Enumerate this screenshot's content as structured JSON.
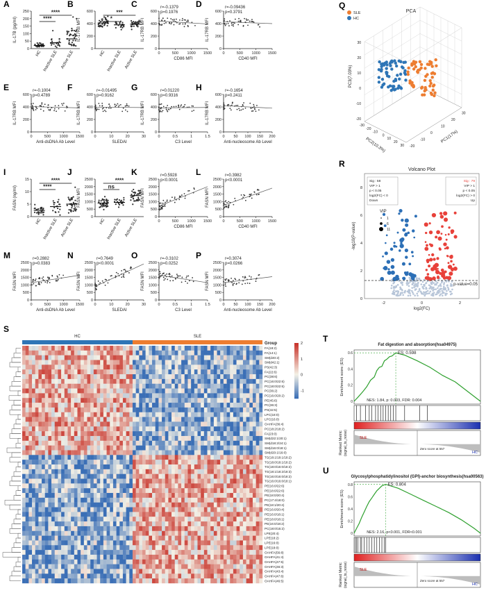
{
  "colors": {
    "sle": "#ED7D31",
    "hc": "#2E75B6",
    "up": "#E8413A",
    "down": "#2C6FB6",
    "ns": "#B7C5D8",
    "es_line": "#2EA02E",
    "heat_low": "#3B6FB6",
    "heat_mid": "#F4F1E6",
    "heat_high": "#C8342B",
    "point": "#333333"
  },
  "chart_data": [
    {
      "id": "A",
      "type": "scatter",
      "ylabel": "IL-17B (pg/ml)",
      "categories": [
        "HC",
        "Inactive SLE",
        "Active SLE"
      ],
      "ylim": [
        0,
        250
      ],
      "yticks": [
        0,
        50,
        100,
        150,
        200,
        250
      ],
      "medians": [
        20,
        40,
        65
      ],
      "spread": [
        [
          5,
          40
        ],
        [
          5,
          120
        ],
        [
          10,
          230
        ]
      ],
      "n": [
        34,
        20,
        40
      ],
      "significance": [
        {
          "pair": [
            0,
            1
          ],
          "label": "****"
        },
        {
          "pair": [
            0,
            2
          ],
          "label": "****"
        }
      ]
    },
    {
      "id": "B",
      "type": "scatter",
      "ylabel": "IL-17RB MFI",
      "categories": [
        "HC",
        "Inactive SLE",
        "Active SLE"
      ],
      "ylim": [
        0,
        600
      ],
      "yticks": [
        0,
        200,
        400,
        600
      ],
      "medians": [
        410,
        380,
        390
      ],
      "spread": [
        [
          330,
          560
        ],
        [
          300,
          470
        ],
        [
          300,
          460
        ]
      ],
      "n": [
        40,
        22,
        36
      ],
      "significance": [
        {
          "pair": [
            0,
            1
          ],
          "label": "*"
        },
        {
          "pair": [
            0,
            2
          ],
          "label": "***"
        }
      ]
    },
    {
      "id": "C",
      "type": "scatter",
      "xlabel": "CD86 MFI",
      "ylabel": "IL-17RB MFI",
      "stat": [
        "r=-0.1379",
        "p=0.1976"
      ],
      "xlim": [
        0,
        1500
      ],
      "ylim": [
        0,
        600
      ],
      "xticks": [
        0,
        500,
        1000,
        1500
      ],
      "yticks": [
        0,
        200,
        400,
        600
      ],
      "trend": [
        [
          0,
          440
        ],
        [
          1500,
          395
        ]
      ]
    },
    {
      "id": "D",
      "type": "scatter",
      "xlabel": "CD40 MFI",
      "ylabel": "IL-17RB MFI",
      "stat": [
        "r=-0.09436",
        "p=0.3791"
      ],
      "xlim": [
        0,
        1500
      ],
      "ylim": [
        0,
        600
      ],
      "xticks": [
        0,
        500,
        1000,
        1500
      ],
      "yticks": [
        0,
        200,
        400,
        600
      ],
      "trend": [
        [
          0,
          430
        ],
        [
          1500,
          400
        ]
      ]
    },
    {
      "id": "E",
      "type": "scatter",
      "xlabel": "Anti-dsDNA Ab Level",
      "ylabel": "IL-17RB MFI",
      "stat": [
        "r=-0.1004",
        "p=0.4789"
      ],
      "xlim": [
        0,
        1500
      ],
      "ylim": [
        0,
        600
      ],
      "xticks": [
        0,
        500,
        1000,
        1500
      ],
      "yticks": [
        0,
        200,
        400,
        600
      ],
      "trend": [
        [
          0,
          405
        ],
        [
          1500,
          385
        ]
      ]
    },
    {
      "id": "F",
      "type": "scatter",
      "xlabel": "SLEDAI",
      "ylabel": "IL-17RB MFI",
      "stat": [
        "r=-0.01495",
        "p=0.9162"
      ],
      "xlim": [
        0,
        30
      ],
      "ylim": [
        0,
        600
      ],
      "xticks": [
        0,
        10,
        20,
        30
      ],
      "yticks": [
        0,
        200,
        400,
        600
      ],
      "trend": [
        [
          0,
          395
        ],
        [
          30,
          390
        ]
      ]
    },
    {
      "id": "G",
      "type": "scatter",
      "xlabel": "C3 Level",
      "ylabel": "IL-17RB MFI",
      "stat": [
        "r=0.01220",
        "p=0.9316"
      ],
      "xlim": [
        0,
        1.5
      ],
      "ylim": [
        0,
        600
      ],
      "xticks": [
        0.0,
        0.5,
        1.0,
        1.5
      ],
      "yticks": [
        0,
        200,
        400,
        600
      ],
      "trend": [
        [
          0,
          385
        ],
        [
          1.5,
          392
        ]
      ]
    },
    {
      "id": "H",
      "type": "scatter",
      "xlabel": "Anti-nucleosome Ab Level",
      "ylabel": "IL-17RB MFI",
      "stat": [
        "r=-0.1654",
        "p=0.2411"
      ],
      "xlim": [
        0,
        200
      ],
      "ylim": [
        0,
        600
      ],
      "xticks": [
        0,
        50,
        100,
        150,
        200
      ],
      "yticks": [
        0,
        200,
        400,
        600
      ],
      "trend": [
        [
          0,
          420
        ],
        [
          200,
          380
        ]
      ]
    },
    {
      "id": "I",
      "type": "scatter",
      "ylabel": "FASN (ng/ml)",
      "categories": [
        "HC",
        "Inactive SLE",
        "Active SLE"
      ],
      "ylim": [
        0,
        15
      ],
      "yticks": [
        0,
        5,
        10,
        15
      ],
      "medians": [
        2.5,
        4,
        5
      ],
      "spread": [
        [
          0.5,
          5
        ],
        [
          0.5,
          9
        ],
        [
          1,
          12
        ]
      ],
      "n": [
        34,
        20,
        40
      ],
      "significance": [
        {
          "pair": [
            0,
            1
          ],
          "label": "****"
        },
        {
          "pair": [
            0,
            2
          ],
          "label": "****"
        }
      ]
    },
    {
      "id": "J",
      "type": "scatter",
      "ylabel": "FASN MFI",
      "categories": [
        "HC",
        "Inactive SLE",
        "Active SLE"
      ],
      "ylim": [
        0,
        2500
      ],
      "yticks": [
        0,
        500,
        1000,
        1500,
        2000,
        2500
      ],
      "medians": [
        900,
        950,
        1400
      ],
      "spread": [
        [
          450,
          1500
        ],
        [
          600,
          1400
        ],
        [
          800,
          2100
        ]
      ],
      "n": [
        40,
        22,
        36
      ],
      "significance": [
        {
          "pair": [
            0,
            1
          ],
          "label": "ns"
        },
        {
          "pair": [
            0,
            2
          ],
          "label": "****"
        }
      ]
    },
    {
      "id": "K",
      "type": "scatter",
      "xlabel": "CD86 MFI",
      "ylabel": "FASN MFI",
      "stat": [
        "r=0.5928",
        "p<0.0001"
      ],
      "xlim": [
        0,
        1500
      ],
      "ylim": [
        0,
        2500
      ],
      "xticks": [
        0,
        500,
        1000,
        1500
      ],
      "yticks": [
        0,
        500,
        1000,
        1500,
        2000,
        2500
      ],
      "trend": [
        [
          0,
          700
        ],
        [
          1500,
          2000
        ]
      ]
    },
    {
      "id": "L",
      "type": "scatter",
      "xlabel": "CD40 MFI",
      "ylabel": "FASN MFI",
      "stat": [
        "r=0.3982",
        "p<0.0001"
      ],
      "xlim": [
        0,
        1500
      ],
      "ylim": [
        0,
        2500
      ],
      "xticks": [
        0,
        500,
        1000,
        1500
      ],
      "yticks": [
        0,
        500,
        1000,
        1500,
        2000,
        2500
      ],
      "trend": [
        [
          0,
          750
        ],
        [
          1500,
          1900
        ]
      ]
    },
    {
      "id": "M",
      "type": "scatter",
      "xlabel": "Anti-dsDNA Ab Level",
      "ylabel": "FASN MFI",
      "stat": [
        "r=0.2882",
        "p=0.0383"
      ],
      "xlim": [
        0,
        1500
      ],
      "ylim": [
        0,
        2500
      ],
      "xticks": [
        0,
        500,
        1000,
        1500
      ],
      "yticks": [
        0,
        500,
        1000,
        1500,
        2000,
        2500
      ],
      "trend": [
        [
          0,
          1150
        ],
        [
          1500,
          1650
        ]
      ]
    },
    {
      "id": "N",
      "type": "scatter",
      "xlabel": "SLEDAI",
      "ylabel": "FASN MFI",
      "stat": [
        "r=0.7649",
        "p<0.0001"
      ],
      "xlim": [
        0,
        30
      ],
      "ylim": [
        0,
        2500
      ],
      "xticks": [
        0,
        10,
        20,
        30
      ],
      "yticks": [
        0,
        500,
        1000,
        1500,
        2000,
        2500
      ],
      "trend": [
        [
          0,
          900
        ],
        [
          30,
          2400
        ]
      ]
    },
    {
      "id": "O",
      "type": "scatter",
      "xlabel": "C3 Level",
      "ylabel": "FASN MFI",
      "stat": [
        "r=-0.3102",
        "p=0.0252"
      ],
      "xlim": [
        0,
        1.5
      ],
      "ylim": [
        0,
        2500
      ],
      "xticks": [
        0.0,
        0.5,
        1.0,
        1.5
      ],
      "yticks": [
        0,
        500,
        1000,
        1500,
        2000,
        2500
      ],
      "trend": [
        [
          0,
          1650
        ],
        [
          1.5,
          1150
        ]
      ]
    },
    {
      "id": "P",
      "type": "scatter",
      "xlabel": "Anti-nucleosome Ab Level",
      "ylabel": "FASN MFI",
      "stat": [
        "r=0.3074",
        "p=0.0266"
      ],
      "xlim": [
        0,
        200
      ],
      "ylim": [
        0,
        2500
      ],
      "xticks": [
        0,
        50,
        100,
        150,
        200
      ],
      "yticks": [
        0,
        500,
        1000,
        1500,
        2000,
        2500
      ],
      "trend": [
        [
          0,
          1150
        ],
        [
          200,
          1550
        ]
      ]
    },
    {
      "id": "Q",
      "type": "scatter",
      "title": "PCA",
      "legend": [
        "SLE",
        "HC"
      ],
      "axis_labels": [
        "PC1(17%)",
        "PC2(10.3%)",
        "PC3(7.03%)"
      ],
      "ticks_pc1": [
        -20,
        -10,
        0,
        10,
        20,
        30
      ],
      "ticks_pc2": [
        -30,
        -20,
        -10,
        0,
        10,
        20,
        30
      ],
      "ticks_pc3": [
        -20,
        -10,
        0,
        10,
        20,
        30
      ]
    },
    {
      "id": "R",
      "type": "scatter",
      "title": "Volcano Plot",
      "xlabel": "log2(FC)",
      "ylabel": "-log10(P-value)",
      "xlim": [
        -3,
        3
      ],
      "ylim": [
        0,
        9
      ],
      "xticks": [
        -2,
        0,
        2
      ],
      "yticks": [
        0,
        2,
        4,
        6,
        8
      ],
      "threshold_label": "p-value=0.05",
      "threshold": 1.3,
      "down_box": [
        "Sig : 58",
        "VIP > 1",
        "p < 0.05",
        "log2(FC) < 0",
        "Down"
      ],
      "up_box": [
        "Sig : 79",
        "VIP > 1",
        "p < 0.05",
        "log2(FC) > 0",
        "Up"
      ],
      "vip_legend": {
        "title": "VIP",
        "levels": [
          "1",
          "6",
          "11"
        ]
      }
    },
    {
      "id": "S",
      "type": "heatmap",
      "groups": [
        "HC",
        "SLE"
      ],
      "group_label": "Group",
      "colorbar_ticks": [
        "2",
        "1",
        "0",
        "-1"
      ],
      "rows": [
        "FA(18:2)",
        "FA(14:1)",
        "SM(d40:2)",
        "SM(d42:1)",
        "PS(42:3)",
        "FA(22:6)",
        "PC(38:6)",
        "PC(16:0/22:6)",
        "PC(18:0/22:6)",
        "PC(36:2)",
        "PC(16:0/20:2)",
        "PE(45:6)",
        "PC(36:3)",
        "PS(42:5)",
        "LPC(18:0)",
        "LPC(16:0)",
        "OAHFA(36:4)",
        "PC(18:2/18:2)",
        "FA(23:0)",
        "SM(d22:1/20:1)",
        "SM(d18:2/24:1)",
        "SM(d16:0/18:1)",
        "SM(d20:1/16:0)",
        "TG(18:1/18:1/18:2)",
        "TG(18:0/18:1/18:2)",
        "TG(18:0/16:0/18:2)",
        "TG(18:1/18:2/18:3)",
        "TG(16:0/16:0/18:2)",
        "TG(16:0/16:0/18:1)",
        "PE(16:0/22:6)",
        "PE(18:0/22:6)",
        "PE(18:0/20:4)",
        "PC(17:4/18:0)",
        "PE(18:1/20:4)",
        "PE(16:0/20:4)",
        "PE(16:0/18:1)",
        "PE(18:0/18:1)",
        "PE(16:0/18:2)",
        "PC(18:0/15:2)",
        "LPE(20:4)",
        "LPE(18:2)",
        "LPE(16:0)",
        "LPE(18:0)",
        "OAHFA(56:8)",
        "OAHFA(41:4)",
        "OAHFA(47:5)",
        "OAHFA(46:3)",
        "OAHFA(43:4)",
        "OAHFA(47:6)",
        "OAHFA(46:5)"
      ],
      "n_hc": 34,
      "n_sle": 40,
      "sle_up_from_row": 23
    },
    {
      "id": "T",
      "type": "line",
      "title": "Fat digestion and absorption(hsa04975)",
      "ylabel": "Enrichment score (ES)",
      "es_label": "ES: 0.598",
      "stats": "NES: 1.84, p: 0.003, FDR: 0.004",
      "ylim": [
        0,
        0.6
      ],
      "yticks": [
        0,
        0.2,
        0.4,
        0.6
      ],
      "peak_x": 0.33,
      "peak_es": 0.598,
      "rank_ylabel": [
        "Ranked Metric",
        "(signal_to_noise)"
      ],
      "sle_label": "SLE",
      "hc_label": "HC",
      "zero_label": "Zero score at 557",
      "es_curve": [
        [
          0,
          0
        ],
        [
          0.03,
          0.05
        ],
        [
          0.07,
          0.12
        ],
        [
          0.1,
          0.18
        ],
        [
          0.13,
          0.26
        ],
        [
          0.16,
          0.3
        ],
        [
          0.18,
          0.38
        ],
        [
          0.2,
          0.42
        ],
        [
          0.22,
          0.43
        ],
        [
          0.24,
          0.5
        ],
        [
          0.26,
          0.52
        ],
        [
          0.28,
          0.55
        ],
        [
          0.3,
          0.56
        ],
        [
          0.33,
          0.598
        ],
        [
          0.4,
          0.57
        ],
        [
          0.5,
          0.5
        ],
        [
          0.6,
          0.42
        ],
        [
          0.7,
          0.32
        ],
        [
          0.8,
          0.24
        ],
        [
          0.9,
          0.12
        ],
        [
          1,
          0
        ]
      ],
      "hits": [
        0.02,
        0.05,
        0.09,
        0.12,
        0.14,
        0.17,
        0.19,
        0.21,
        0.23,
        0.25,
        0.27,
        0.29,
        0.31,
        0.33,
        0.4,
        0.52,
        0.58
      ]
    },
    {
      "id": "U",
      "type": "line",
      "title": "Glycosylphosphatidylinositol (GPI)-anchor biosynthesis(hsa00563)",
      "ylabel": "Enrichment score (ES)",
      "es_label": "ES: 0.804",
      "stats": "NES: 2.16, p<0.001, FDR<0.001",
      "ylim": [
        0,
        0.8
      ],
      "yticks": [
        0,
        0.2,
        0.4,
        0.6,
        0.8
      ],
      "peak_x": 0.25,
      "peak_es": 0.804,
      "rank_ylabel": [
        "Ranked Metric",
        "(signal_to_noise)"
      ],
      "sle_label": "SLE",
      "hc_label": "HC",
      "zero_label": "Zero score at 557",
      "es_curve": [
        [
          0,
          0
        ],
        [
          0.02,
          0.08
        ],
        [
          0.04,
          0.16
        ],
        [
          0.06,
          0.26
        ],
        [
          0.08,
          0.35
        ],
        [
          0.1,
          0.44
        ],
        [
          0.12,
          0.52
        ],
        [
          0.14,
          0.58
        ],
        [
          0.16,
          0.64
        ],
        [
          0.18,
          0.7
        ],
        [
          0.2,
          0.74
        ],
        [
          0.22,
          0.78
        ],
        [
          0.25,
          0.804
        ],
        [
          0.35,
          0.74
        ],
        [
          0.45,
          0.64
        ],
        [
          0.55,
          0.54
        ],
        [
          0.65,
          0.44
        ],
        [
          0.75,
          0.34
        ],
        [
          0.85,
          0.22
        ],
        [
          0.95,
          0.08
        ],
        [
          1,
          0
        ]
      ],
      "hits": [
        0.01,
        0.02,
        0.03,
        0.05,
        0.06,
        0.08,
        0.1,
        0.12,
        0.14,
        0.16,
        0.18,
        0.2,
        0.22,
        0.24,
        0.25
      ]
    }
  ]
}
